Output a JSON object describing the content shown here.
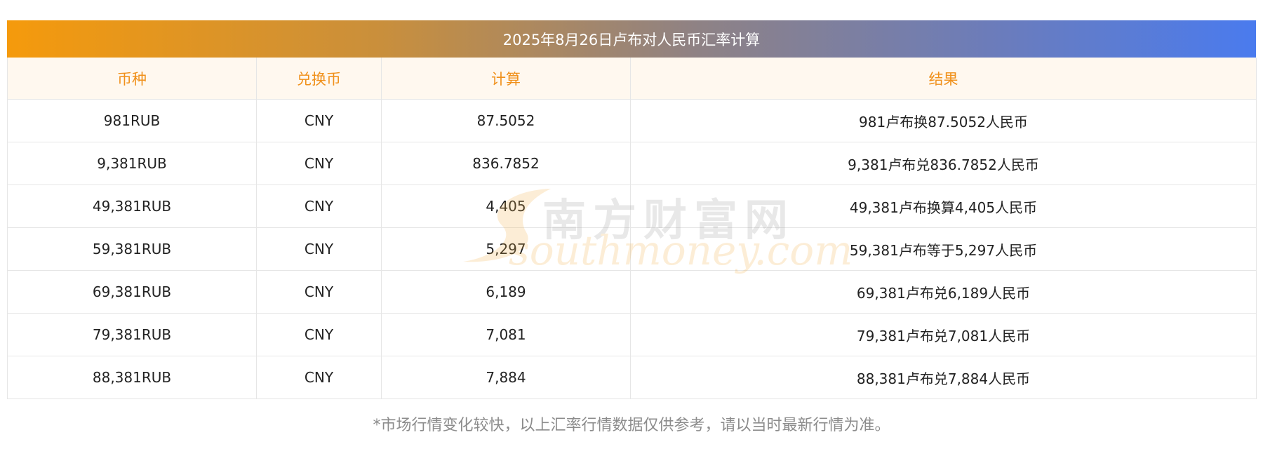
{
  "table": {
    "title": "2025年8月26日卢布对人民币汇率计算",
    "headers": [
      "币种",
      "兑换币",
      "计算",
      "结果"
    ],
    "rows": [
      [
        "981RUB",
        "CNY",
        "87.5052",
        "981卢布换87.5052人民币"
      ],
      [
        "9,381RUB",
        "CNY",
        "836.7852",
        "9,381卢布兑836.7852人民币"
      ],
      [
        "49,381RUB",
        "CNY",
        "4,405",
        "49,381卢布换算4,405人民币"
      ],
      [
        "59,381RUB",
        "CNY",
        "5,297",
        "59,381卢布等于5,297人民币"
      ],
      [
        "69,381RUB",
        "CNY",
        "6,189",
        "69,381卢布兑6,189人民币"
      ],
      [
        "79,381RUB",
        "CNY",
        "7,081",
        "79,381卢布兑7,081人民币"
      ],
      [
        "88,381RUB",
        "CNY",
        "7,884",
        "88,381卢布兑7,884人民币"
      ]
    ]
  },
  "watermark": {
    "cn": "南方财富网",
    "en": "southmoney.com"
  },
  "footnote": "*市场行情变化较快，以上汇率行情数据仅供参考，请以当时最新行情为准。",
  "colors": {
    "header_text": "#f0901a",
    "header_bg": "#fff8ef",
    "title_gradient_start": "#f59a0c",
    "title_gradient_end": "#4a7bee"
  }
}
